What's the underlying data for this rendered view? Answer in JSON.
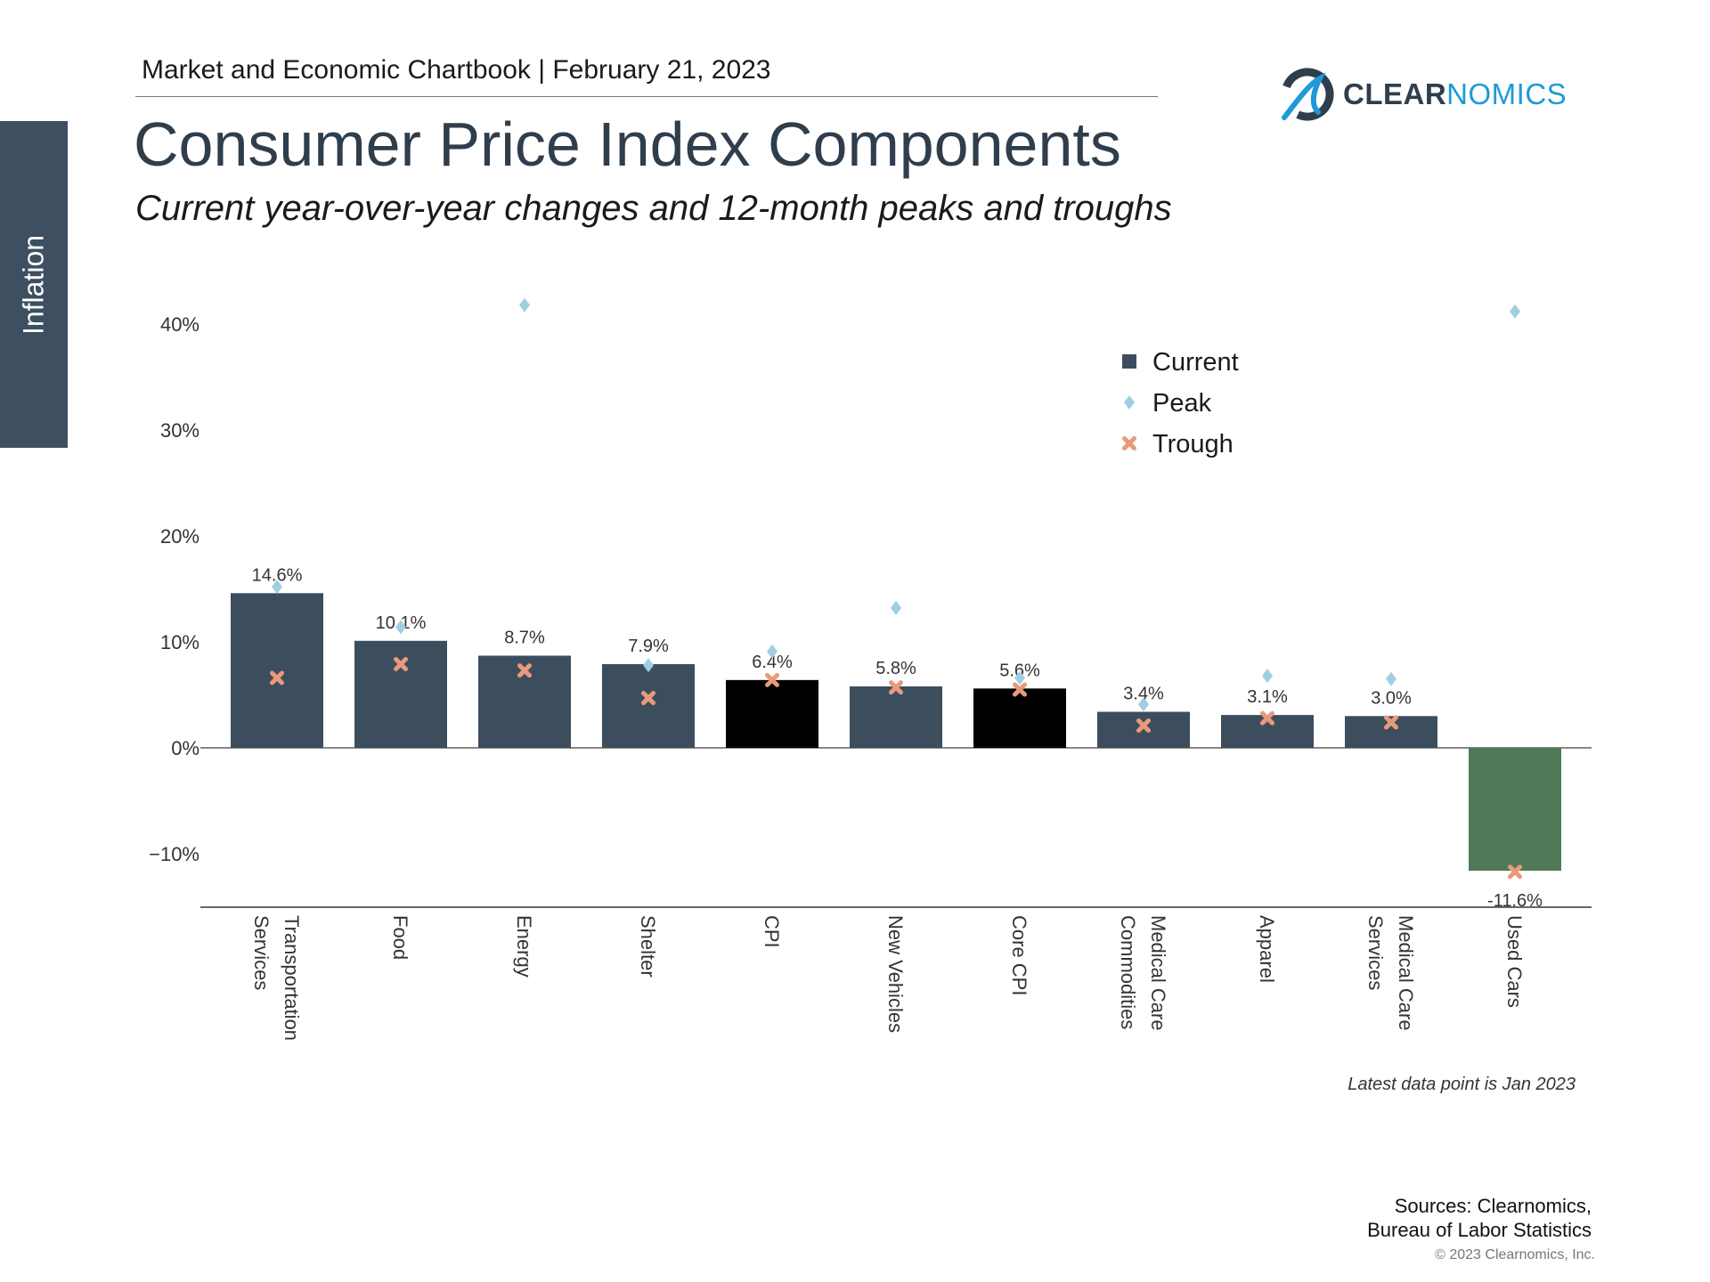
{
  "header": {
    "chartbook": "Market and Economic Chartbook | February 21, 2023"
  },
  "title": "Consumer Price Index Components",
  "subtitle": "Current year-over-year changes and 12-month peaks and troughs",
  "sidebar": {
    "label": "Inflation"
  },
  "logo": {
    "text_a": "CLEAR",
    "text_b": "NOMICS"
  },
  "footnote": "Latest data point is Jan 2023",
  "sources": {
    "line1": "Sources: Clearnomics,",
    "line2": "Bureau of Labor Statistics"
  },
  "copyright": "© 2023 Clearnomics, Inc.",
  "colors": {
    "current": "#3c4e5e",
    "highlight": "#000000",
    "negative": "#507a57",
    "peak": "#9fcfe0",
    "trough": "#e99a7a"
  },
  "chart_data": {
    "type": "bar",
    "categories": [
      [
        "Transportation",
        "Services"
      ],
      [
        "Food"
      ],
      [
        "Energy"
      ],
      [
        "Shelter"
      ],
      [
        "CPI"
      ],
      [
        "New Vehicles"
      ],
      [
        "Core CPI"
      ],
      [
        "Medical Care",
        "Commodities"
      ],
      [
        "Apparel"
      ],
      [
        "Medical Care",
        "Services"
      ],
      [
        "Used Cars"
      ]
    ],
    "series": [
      {
        "name": "Current",
        "type": "bar",
        "values": [
          14.6,
          10.1,
          8.7,
          7.9,
          6.4,
          5.8,
          5.6,
          3.4,
          3.1,
          3.0,
          -11.6
        ]
      },
      {
        "name": "Peak",
        "type": "scatter",
        "marker": "diamond",
        "values": [
          15.2,
          11.4,
          41.8,
          7.8,
          9.1,
          13.2,
          6.6,
          4.1,
          6.8,
          6.5,
          41.2
        ]
      },
      {
        "name": "Trough",
        "type": "scatter",
        "marker": "x",
        "values": [
          6.6,
          7.9,
          7.3,
          4.7,
          6.4,
          5.7,
          5.5,
          2.1,
          2.8,
          2.4,
          -11.7
        ]
      }
    ],
    "data_labels": [
      "14.6%",
      "10.1%",
      "8.7%",
      "7.9%",
      "6.4%",
      "5.8%",
      "5.6%",
      "3.4%",
      "3.1%",
      "3.0%",
      "-11.6%"
    ],
    "bar_colors": [
      "current",
      "current",
      "current",
      "current",
      "highlight",
      "current",
      "highlight",
      "current",
      "current",
      "current",
      "negative"
    ],
    "yticks": [
      {
        "v": 40,
        "label": "40%"
      },
      {
        "v": 30,
        "label": "30%"
      },
      {
        "v": 20,
        "label": "20%"
      },
      {
        "v": 10,
        "label": "10%"
      },
      {
        "v": 0,
        "label": "0%"
      },
      {
        "v": -10,
        "label": "−10%"
      }
    ],
    "ylim": [
      -15,
      42
    ],
    "grid": false,
    "legend": {
      "position": "top-right",
      "items": [
        "Current",
        "Peak",
        "Trough"
      ]
    }
  }
}
